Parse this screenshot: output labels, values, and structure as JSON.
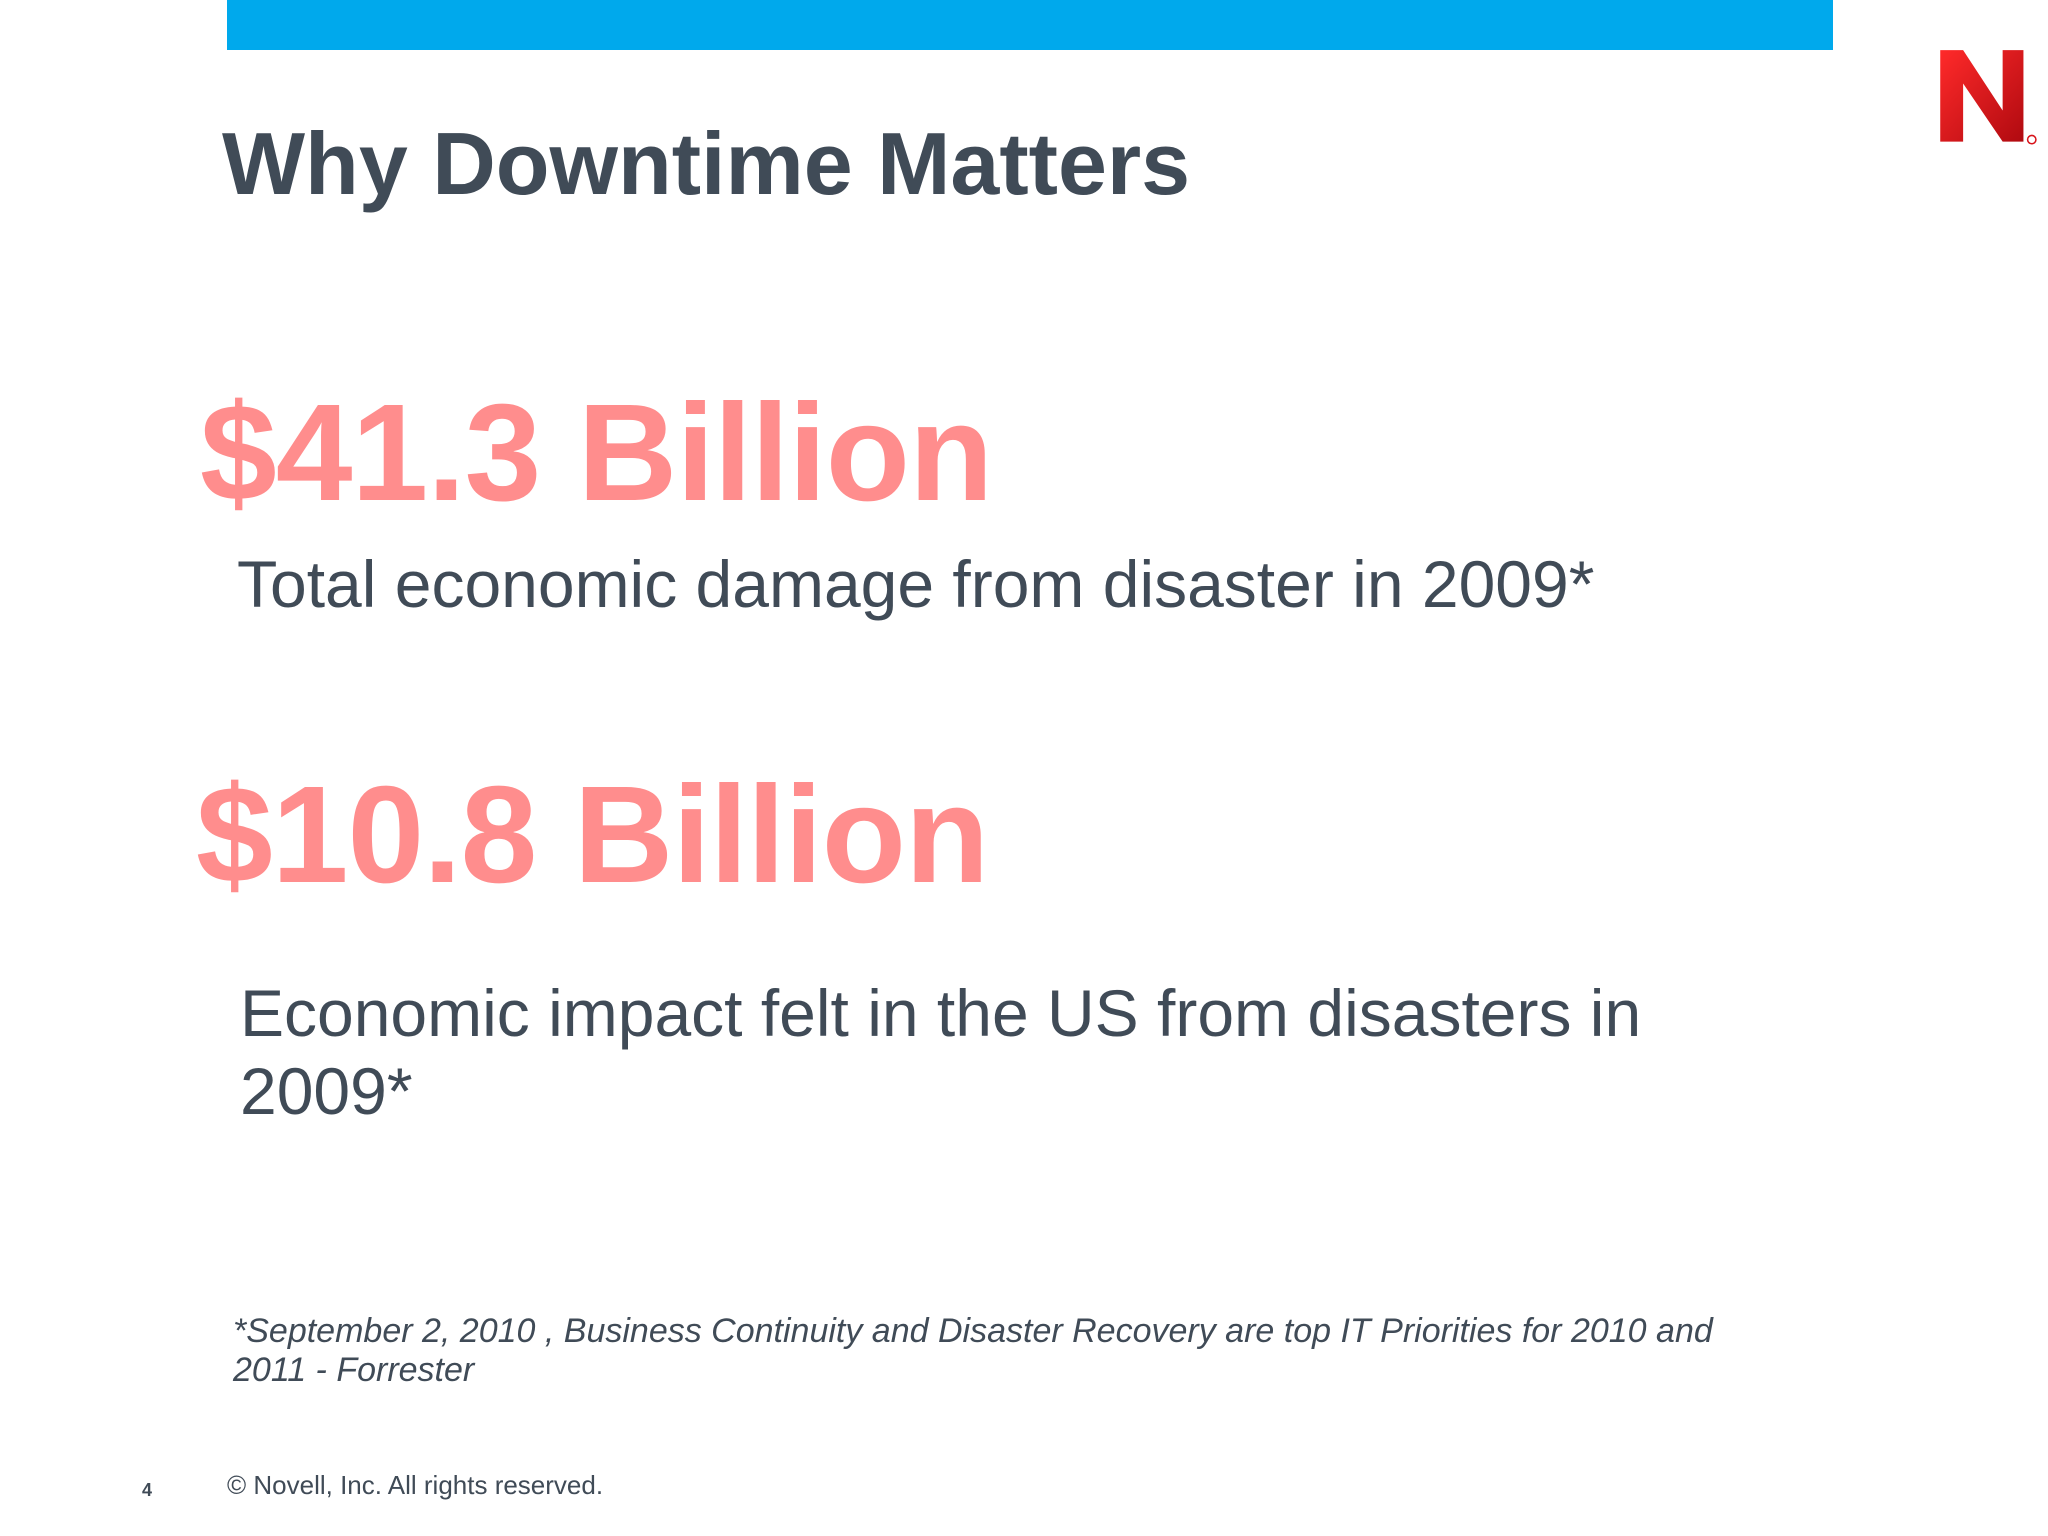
{
  "slide": {
    "title": "Why Downtime Matters",
    "stats": [
      {
        "value": "$41.3 Billion",
        "caption": "Total economic damage from disaster in 2009*"
      },
      {
        "value": "$10.8 Billion",
        "caption": "Economic impact felt in the US from disasters in 2009*"
      }
    ],
    "footnote": "*September 2, 2010 , Business Continuity and Disaster Recovery are top IT Priorities for 2010 and 2011 - Forrester",
    "page_number": "4",
    "copyright": "©  Novell, Inc.  All rights reserved."
  },
  "logo": {
    "icon": "novell-n-logo-icon",
    "color": "#d8141b"
  },
  "colors": {
    "accent_bar": "#00a9ec",
    "stat_text": "#ff8d8d",
    "body_text": "#404b57"
  }
}
